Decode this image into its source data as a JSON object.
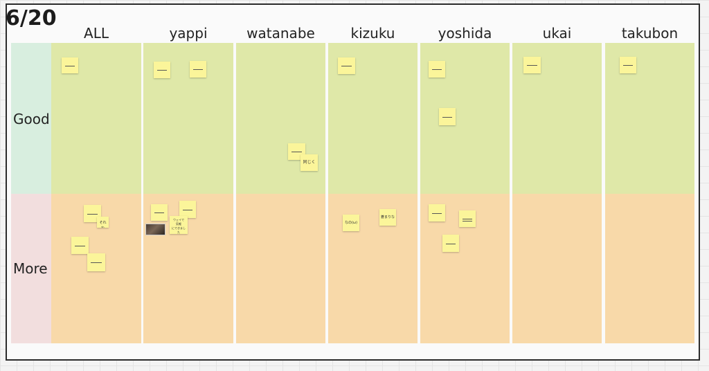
{
  "board": {
    "title": "6/20"
  },
  "columns": [
    "ALL",
    "yappi",
    "watanabe",
    "kizuku",
    "yoshida",
    "ukai",
    "takubon"
  ],
  "rows": [
    "Good",
    "More"
  ],
  "notes": {
    "yappi_more_1": "ウェイで\n気軽\nにできました",
    "watanabe_good_2": "同じく",
    "kizuku_more_1": "なの(ω)",
    "kizuku_more_2": "蒼まりな",
    "all_more_2": "それね"
  },
  "colors": {
    "good_row": "#dfe8a8",
    "more_row": "#f8d9a9",
    "good_label": "#d8eedf",
    "more_label": "#f2dede",
    "sticky": "#fbf59a"
  }
}
